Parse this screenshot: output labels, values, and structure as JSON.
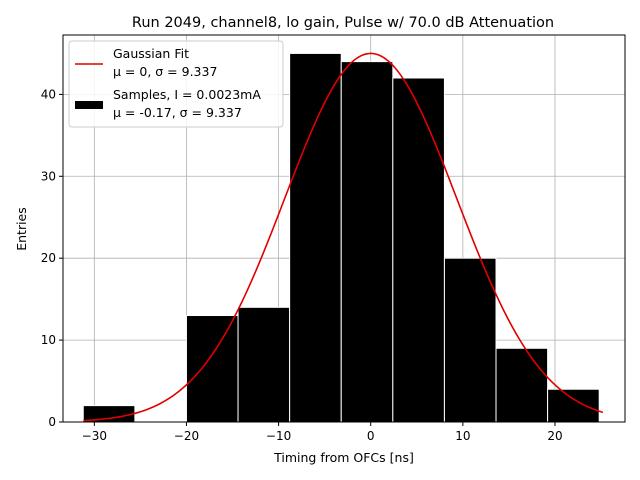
{
  "chart_data": {
    "type": "bar",
    "title": "Run 2049, channel8, lo gain, Pulse w/ 70.0 dB Attenuation",
    "xlabel": "Timing from OFCs [ns]",
    "ylabel": "Entries",
    "xlim": [
      -33.4,
      27.6
    ],
    "ylim": [
      0,
      47.25
    ],
    "xticks": [
      -30,
      -20,
      -10,
      0,
      10,
      20
    ],
    "yticks": [
      0,
      10,
      20,
      30,
      40
    ],
    "xtick_labels": [
      "−30",
      "−20",
      "−10",
      "0",
      "10",
      "20"
    ],
    "ytick_labels": [
      "0",
      "10",
      "20",
      "30",
      "40"
    ],
    "grid": true,
    "legend_position": "upper-left",
    "bins": [
      {
        "left": -31.2,
        "right": -25.6,
        "value": 2
      },
      {
        "left": -25.6,
        "right": -20.0,
        "value": 0
      },
      {
        "left": -20.0,
        "right": -14.4,
        "value": 13
      },
      {
        "left": -14.4,
        "right": -8.8,
        "value": 14
      },
      {
        "left": -8.8,
        "right": -3.2,
        "value": 45
      },
      {
        "left": -3.2,
        "right": 2.4,
        "value": 44
      },
      {
        "left": 2.4,
        "right": 8.0,
        "value": 42
      },
      {
        "left": 8.0,
        "right": 13.6,
        "value": 20
      },
      {
        "left": 13.6,
        "right": 19.2,
        "value": 9
      },
      {
        "left": 19.2,
        "right": 24.8,
        "value": 4
      }
    ],
    "fit": {
      "name": "Gaussian Fit",
      "mu": 0,
      "sigma": 9.337,
      "amplitude": 45,
      "x_range": [
        -31.2,
        25.2
      ],
      "color": "#e00000"
    },
    "samples_color": "#000000",
    "legend": [
      {
        "line1": "Gaussian Fit",
        "line2": "μ = 0, σ = 9.337",
        "kind": "line",
        "color": "#e00000"
      },
      {
        "line1": "Samples, I = 0.0023mA",
        "line2": "μ = -0.17, σ = 9.337",
        "kind": "patch",
        "color": "#000000"
      }
    ]
  }
}
